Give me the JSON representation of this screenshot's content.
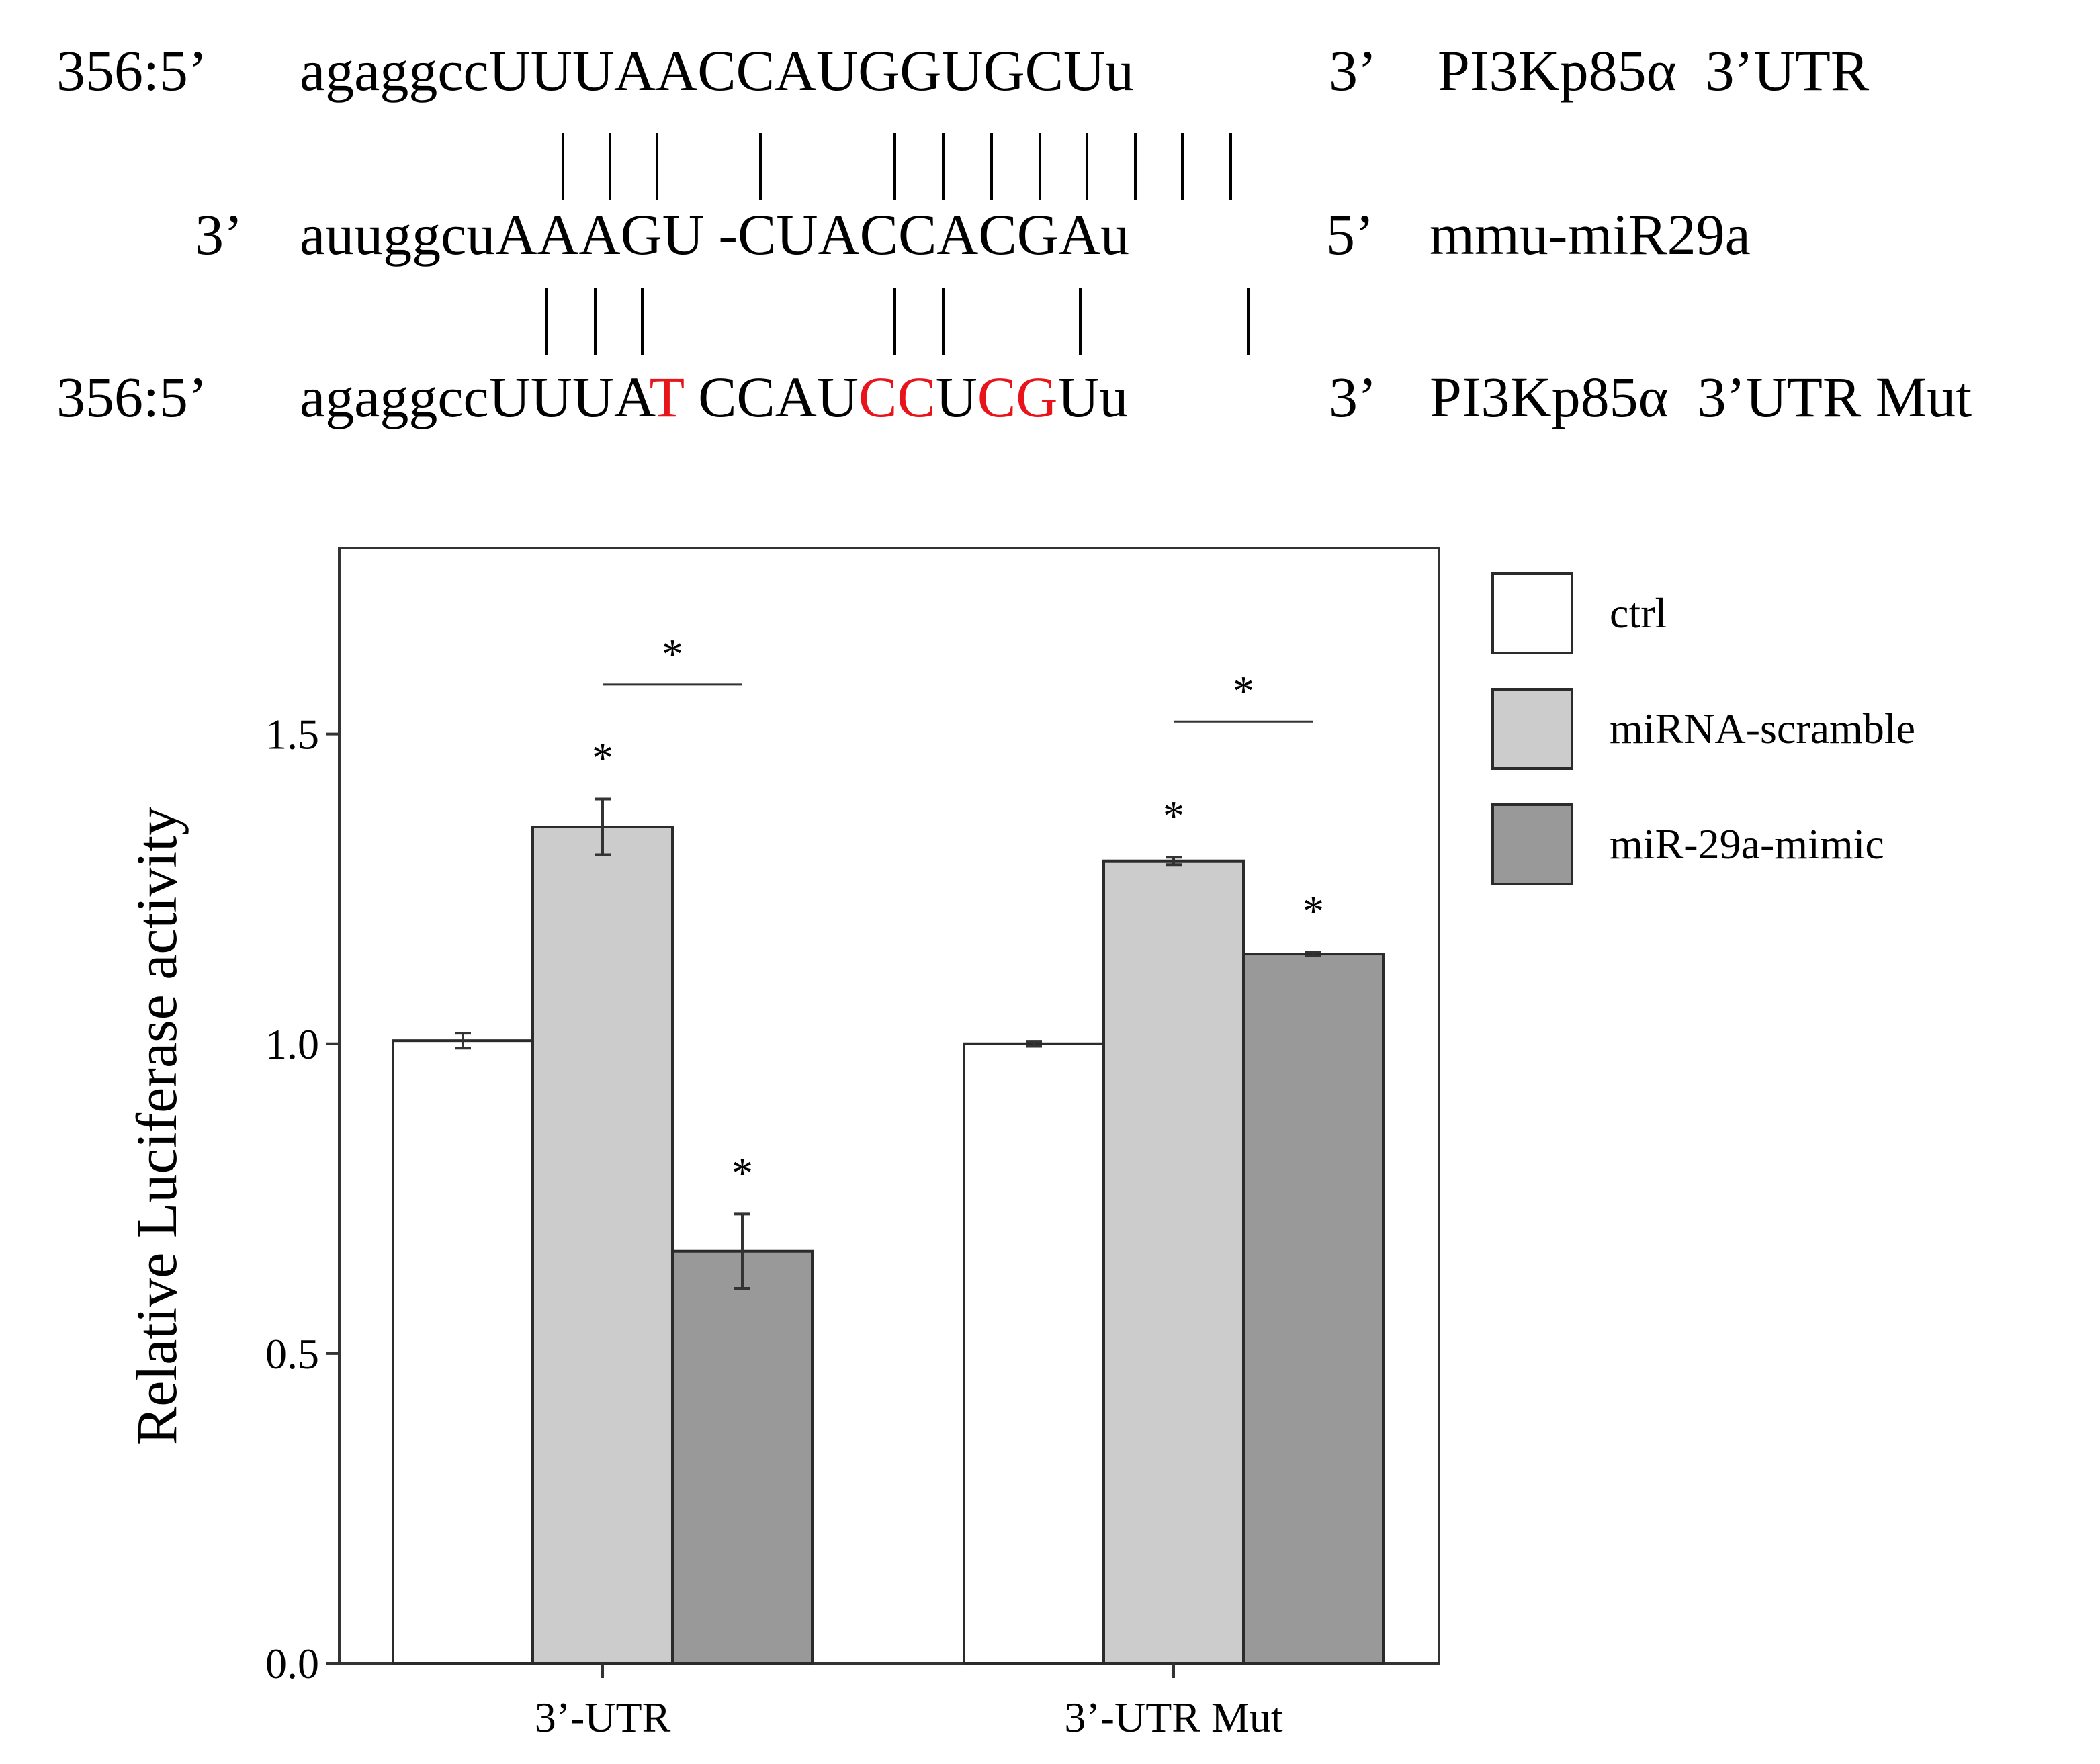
{
  "alignment": {
    "utr": {
      "prefix": "356:5’",
      "sequence_parts": [
        {
          "text": "agaggccUUUAACCAUGGUGCUu",
          "mutated": false
        }
      ],
      "end": "3’",
      "name": "PI3Kp85α  3’UTR"
    },
    "pairs_top": [
      0,
      1,
      2,
      4,
      7,
      8,
      9,
      10,
      11,
      12,
      13,
      14
    ],
    "mirna": {
      "prefix": "3’",
      "sequence_parts": [
        {
          "text": "auuggcuAAAGU -CUACCACGAu",
          "mutated": false
        }
      ],
      "end": "5’",
      "name": "mmu-miR29a"
    },
    "pairs_bottom": [
      0,
      1,
      2,
      7,
      8,
      11,
      14
    ],
    "mut": {
      "prefix": "356:5’",
      "sequence_parts": [
        {
          "text": "agaggccUUUA",
          "mutated": false
        },
        {
          "text": "T",
          "mutated": true
        },
        {
          "text": " CCAU",
          "mutated": false
        },
        {
          "text": "CC",
          "mutated": true
        },
        {
          "text": "U",
          "mutated": false
        },
        {
          "text": "CG",
          "mutated": true
        },
        {
          "text": "Uu",
          "mutated": false
        }
      ],
      "end": "3’",
      "name": "PI3Kp85α  3’UTR Mut"
    },
    "mutation_color": "#e8141b"
  },
  "chart_data": {
    "type": "bar",
    "categories": [
      "3’-UTR",
      "3’-UTR Mut"
    ],
    "ylabel": "Relative Luciferase activity",
    "xlabel": "",
    "ylim": [
      0,
      1.8
    ],
    "yticks": [
      0.0,
      0.5,
      1.0,
      1.5
    ],
    "ytick_labels": [
      "0.0",
      "0.5",
      "1.0",
      "1.5"
    ],
    "grid": false,
    "legend_position": "right",
    "series": [
      {
        "name": "ctrl",
        "color": "#ffffff",
        "values": [
          1.005,
          1.0
        ],
        "errors": [
          0.012,
          0.004
        ],
        "significant": [
          false,
          false
        ]
      },
      {
        "name": "miRNA-scramble",
        "color": "#cccccc",
        "values": [
          1.35,
          1.295
        ],
        "errors": [
          0.045,
          0.006
        ],
        "significant": [
          true,
          true
        ]
      },
      {
        "name": "miR-29a-mimic",
        "color": "#999999",
        "values": [
          0.665,
          1.145
        ],
        "errors": [
          0.06,
          0.003
        ],
        "significant": [
          true,
          true
        ]
      }
    ],
    "significance_marker": "*",
    "comparisons": [
      {
        "category": 0,
        "between": [
          1,
          2
        ],
        "y": 1.58,
        "label": "*"
      },
      {
        "category": 1,
        "between": [
          1,
          2
        ],
        "y": 1.52,
        "label": "*"
      }
    ]
  }
}
